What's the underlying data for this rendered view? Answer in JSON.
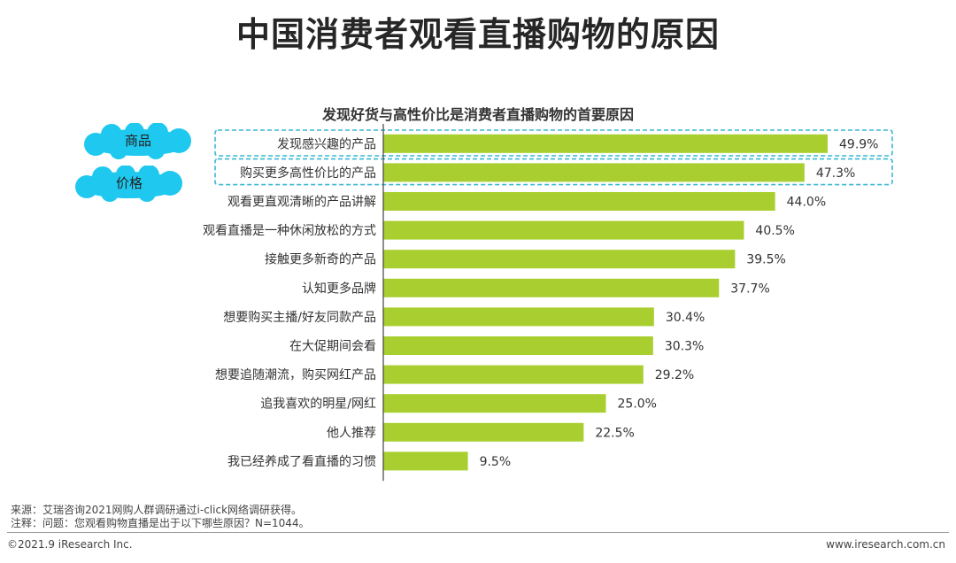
{
  "title": "中国消费者观看直播购物的原因",
  "chart_data": {
    "type": "bar",
    "orientation": "horizontal",
    "title": "发现好货与高性价比是消费者直播购物的首要原因",
    "categories": [
      "发现感兴趣的产品",
      "购买更多高性价比的产品",
      "观看更直观清晰的产品讲解",
      "观看直播是一种休闲放松的方式",
      "接触更多新奇的产品",
      "认知更多品牌",
      "想要购买主播/好友同款产品",
      "在大促期间会看",
      "想要追随潮流，购买网红产品",
      "追我喜欢的明星/网红",
      "他人推荐",
      "我已经养成了看直播的习惯"
    ],
    "values": [
      49.9,
      47.3,
      44.0,
      40.5,
      39.5,
      37.7,
      30.4,
      30.3,
      29.2,
      25.0,
      22.5,
      9.5
    ],
    "value_labels": [
      "49.9%",
      "47.3%",
      "44.0%",
      "40.5%",
      "39.5%",
      "37.7%",
      "30.4%",
      "30.3%",
      "29.2%",
      "25.0%",
      "22.5%",
      "9.5%"
    ],
    "xlim": [
      0,
      55
    ],
    "bar_color": "#a8cf2f",
    "grid": false
  },
  "callouts": {
    "product": "商品",
    "price": "价格",
    "cloud_color": "#1ec8ef",
    "box_color": "#3ab7d4"
  },
  "footnotes": {
    "source": "来源：艾瑞咨询2021网购人群调研通过i-click网络调研获得。",
    "note": "注释：问题：您观看购物直播是出于以下哪些原因？N=1044。"
  },
  "footer": {
    "copyright": "©2021.9 iResearch Inc.",
    "website": "www.iresearch.com.cn"
  }
}
